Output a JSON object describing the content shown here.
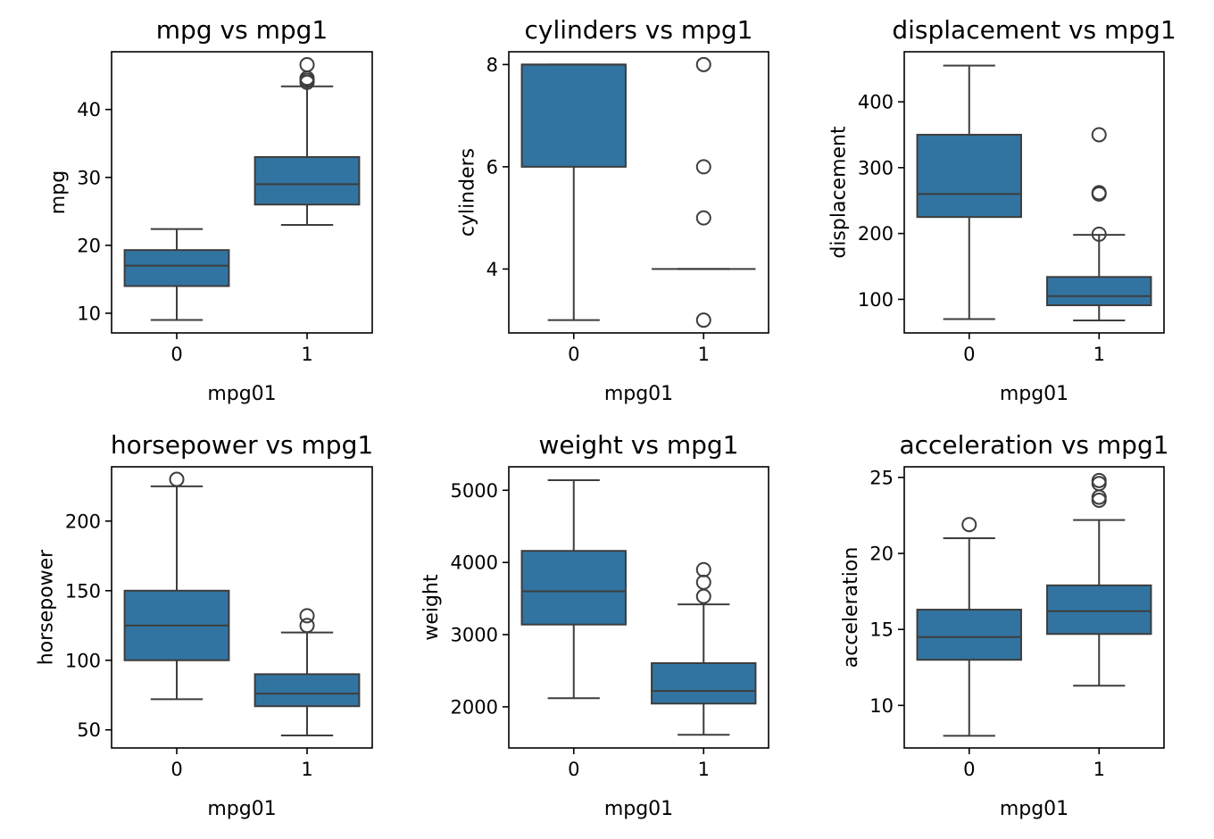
{
  "chart_data": [
    {
      "type": "box",
      "title": "mpg vs mpg1",
      "xlabel": "mpg01",
      "ylabel": "mpg",
      "categories": [
        "0",
        "1"
      ],
      "ylim": [
        7.1,
        48.5
      ],
      "yticks": [
        10,
        20,
        30,
        40
      ],
      "color": "#3274a1",
      "boxes": [
        {
          "min": 9.0,
          "q1": 14.0,
          "median": 17.0,
          "q3": 19.3,
          "max": 22.4,
          "outliers": []
        },
        {
          "min": 23.0,
          "q1": 26.0,
          "median": 29.0,
          "q3": 33.0,
          "max": 43.4,
          "outliers": [
            44.0,
            44.3,
            44.6,
            46.6
          ]
        }
      ]
    },
    {
      "type": "box",
      "title": "cylinders vs mpg1",
      "xlabel": "mpg01",
      "ylabel": "cylinders",
      "categories": [
        "0",
        "1"
      ],
      "ylim": [
        2.75,
        8.25
      ],
      "yticks": [
        4,
        6,
        8
      ],
      "color": "#3274a1",
      "boxes": [
        {
          "min": 3,
          "q1": 6,
          "median": 8,
          "q3": 8,
          "max": 8,
          "outliers": []
        },
        {
          "min": 4,
          "q1": 4,
          "median": 4,
          "q3": 4,
          "max": 4,
          "outliers": [
            3,
            5,
            6,
            8
          ]
        }
      ]
    },
    {
      "type": "box",
      "title": "displacement vs mpg1",
      "xlabel": "mpg01",
      "ylabel": "displacement",
      "categories": [
        "0",
        "1"
      ],
      "ylim": [
        49.0,
        476.0
      ],
      "yticks": [
        100,
        200,
        300,
        400
      ],
      "color": "#3274a1",
      "boxes": [
        {
          "min": 70,
          "q1": 225,
          "median": 260,
          "q3": 350,
          "max": 455,
          "outliers": []
        },
        {
          "min": 68,
          "q1": 91,
          "median": 105,
          "q3": 134,
          "max": 198,
          "outliers": [
            199,
            260,
            262,
            350
          ]
        }
      ]
    },
    {
      "type": "box",
      "title": "horsepower vs mpg1",
      "xlabel": "mpg01",
      "ylabel": "horsepower",
      "categories": [
        "0",
        "1"
      ],
      "ylim": [
        37.0,
        239.0
      ],
      "yticks": [
        50,
        100,
        150,
        200
      ],
      "color": "#3274a1",
      "boxes": [
        {
          "min": 72,
          "q1": 100,
          "median": 125,
          "q3": 150,
          "max": 225,
          "outliers": [
            230
          ]
        },
        {
          "min": 46,
          "q1": 67,
          "median": 76,
          "q3": 90,
          "max": 120,
          "outliers": [
            125,
            132
          ]
        }
      ]
    },
    {
      "type": "box",
      "title": "weight vs mpg1",
      "xlabel": "mpg01",
      "ylabel": "weight",
      "categories": [
        "0",
        "1"
      ],
      "ylim": [
        1430,
        5325
      ],
      "yticks": [
        2000,
        3000,
        4000,
        5000
      ],
      "color": "#3274a1",
      "boxes": [
        {
          "min": 2120,
          "q1": 3140,
          "median": 3600,
          "q3": 4160,
          "max": 5140,
          "outliers": []
        },
        {
          "min": 1613,
          "q1": 2045,
          "median": 2220,
          "q3": 2605,
          "max": 3420,
          "outliers": [
            3530,
            3725,
            3900
          ]
        }
      ]
    },
    {
      "type": "box",
      "title": "acceleration vs mpg1",
      "xlabel": "mpg01",
      "ylabel": "acceleration",
      "categories": [
        "0",
        "1"
      ],
      "ylim": [
        7.2,
        25.7
      ],
      "yticks": [
        10,
        15,
        20,
        25
      ],
      "color": "#3274a1",
      "boxes": [
        {
          "min": 8.0,
          "q1": 13.0,
          "median": 14.5,
          "q3": 16.3,
          "max": 21.0,
          "outliers": [
            21.9
          ]
        },
        {
          "min": 11.3,
          "q1": 14.7,
          "median": 16.2,
          "q3": 17.9,
          "max": 22.2,
          "outliers": [
            23.5,
            23.7,
            24.6,
            24.8
          ]
        }
      ]
    }
  ]
}
